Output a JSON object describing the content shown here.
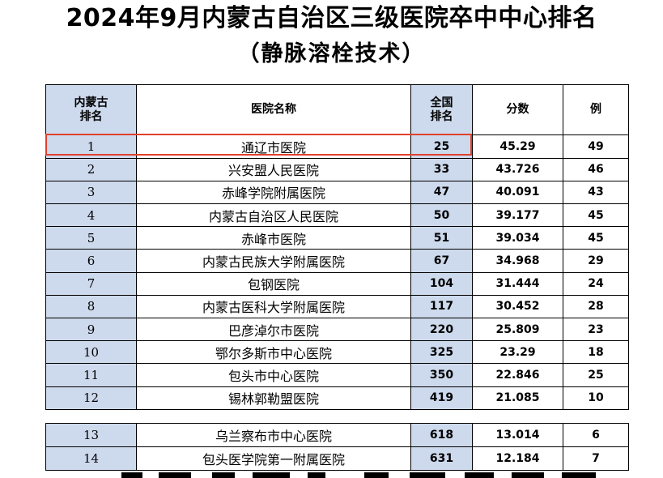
{
  "title": {
    "line1": "2024年9月内蒙古自治区三级医院卒中中心排名",
    "line2": "（静脉溶栓技术）"
  },
  "table": {
    "headers": {
      "region_rank_l1": "内蒙古",
      "region_rank_l2": "排名",
      "hospital": "医院名称",
      "national_rank_l1": "全国",
      "national_rank_l2": "排名",
      "score": "分数",
      "cases": "例"
    },
    "rows": [
      {
        "rank": "1",
        "hospital": "通辽市医院",
        "national_rank": "25",
        "score": "45.29",
        "cases": "49"
      },
      {
        "rank": "2",
        "hospital": "兴安盟人民医院",
        "national_rank": "33",
        "score": "43.726",
        "cases": "46"
      },
      {
        "rank": "3",
        "hospital": "赤峰学院附属医院",
        "national_rank": "47",
        "score": "40.091",
        "cases": "43"
      },
      {
        "rank": "4",
        "hospital": "内蒙古自治区人民医院",
        "national_rank": "50",
        "score": "39.177",
        "cases": "45"
      },
      {
        "rank": "5",
        "hospital": "赤峰市医院",
        "national_rank": "51",
        "score": "39.034",
        "cases": "45"
      },
      {
        "rank": "6",
        "hospital": "内蒙古民族大学附属医院",
        "national_rank": "67",
        "score": "34.968",
        "cases": "29"
      },
      {
        "rank": "7",
        "hospital": "包钢医院",
        "national_rank": "104",
        "score": "31.444",
        "cases": "24"
      },
      {
        "rank": "8",
        "hospital": "内蒙古医科大学附属医院",
        "national_rank": "117",
        "score": "30.452",
        "cases": "28"
      },
      {
        "rank": "9",
        "hospital": "巴彦淖尔市医院",
        "national_rank": "220",
        "score": "25.809",
        "cases": "23"
      },
      {
        "rank": "10",
        "hospital": "鄂尔多斯市中心医院",
        "national_rank": "325",
        "score": "23.29",
        "cases": "18"
      },
      {
        "rank": "11",
        "hospital": "包头市中心医院",
        "national_rank": "350",
        "score": "22.846",
        "cases": "25"
      },
      {
        "rank": "12",
        "hospital": "锡林郭勒盟医院",
        "national_rank": "419",
        "score": "21.085",
        "cases": "10"
      }
    ],
    "extra_rows": [
      {
        "rank": "13",
        "hospital": "乌兰察布市中心医院",
        "national_rank": "618",
        "score": "13.014",
        "cases": "6"
      },
      {
        "rank": "14",
        "hospital": "包头医学院第一附属医院",
        "national_rank": "631",
        "score": "12.184",
        "cases": "7"
      }
    ]
  },
  "colors": {
    "highlight_border": "#e0412c",
    "shaded_cell": "#cdd9ec"
  }
}
